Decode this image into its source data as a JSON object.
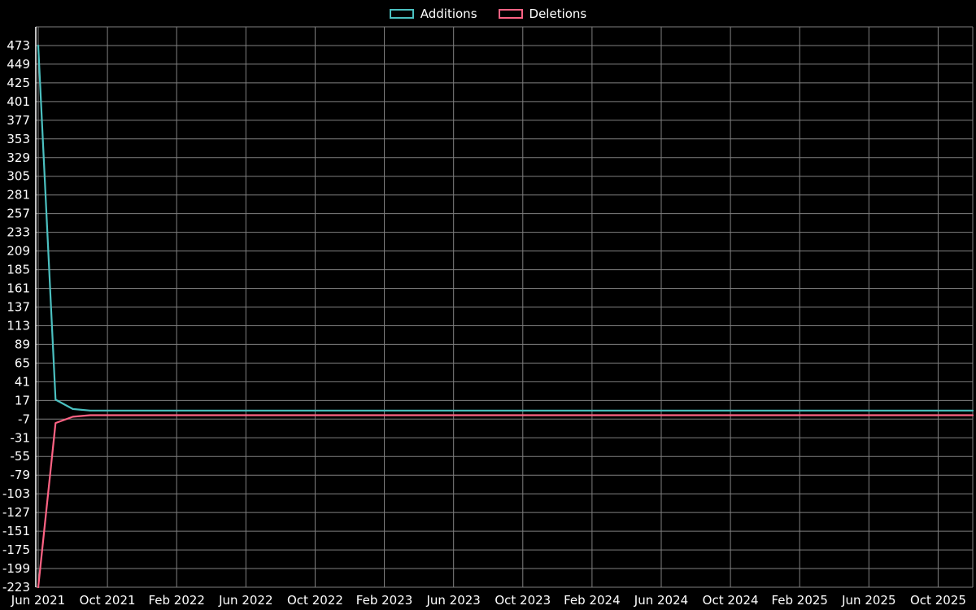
{
  "page": {
    "background": "#000000"
  },
  "legend": {
    "items": [
      {
        "label": "Additions",
        "color": "#4bc0c0"
      },
      {
        "label": "Deletions",
        "color": "#ff6384"
      }
    ]
  },
  "chart_data": {
    "type": "line",
    "title": "",
    "xlabel": "",
    "ylabel": "",
    "background": "#000000",
    "grid": true,
    "grid_color": "#808080",
    "axis_color": "#ffffff",
    "text_color": "#ffffff",
    "legend_position": "top-center",
    "x_tick_labels": [
      "Jun 2021",
      "Oct 2021",
      "Feb 2022",
      "Jun 2022",
      "Oct 2022",
      "Feb 2023",
      "Jun 2023",
      "Oct 2023",
      "Feb 2024",
      "Jun 2024",
      "Oct 2024",
      "Feb 2025",
      "Jun 2025",
      "Oct 2025"
    ],
    "x_tick_month_indices": [
      0,
      4,
      8,
      12,
      16,
      20,
      24,
      28,
      32,
      36,
      40,
      44,
      48,
      52
    ],
    "x_months_count": 55,
    "y_ticks": [
      473,
      449,
      425,
      401,
      377,
      353,
      329,
      305,
      281,
      257,
      233,
      209,
      185,
      161,
      137,
      113,
      89,
      65,
      41,
      17,
      -7,
      -31,
      -55,
      -79,
      -103,
      -127,
      -151,
      -175,
      -199,
      -223
    ],
    "ylim": [
      -223,
      497
    ],
    "series": [
      {
        "name": "Additions",
        "color": "#4bc0c0",
        "values": [
          473,
          18,
          6,
          4,
          4,
          4,
          4,
          4,
          4,
          4,
          4,
          4,
          4,
          4,
          4,
          4,
          4,
          4,
          4,
          4,
          4,
          4,
          4,
          4,
          4,
          4,
          4,
          4,
          4,
          4,
          4,
          4,
          4,
          4,
          4,
          4,
          4,
          4,
          4,
          4,
          4,
          4,
          4,
          4,
          4,
          4,
          4,
          4,
          4,
          4,
          4,
          4,
          4,
          4,
          4
        ]
      },
      {
        "name": "Deletions",
        "color": "#ff6384",
        "values": [
          -223,
          -12,
          -4,
          -2,
          -2,
          -2,
          -2,
          -2,
          -2,
          -2,
          -2,
          -2,
          -2,
          -2,
          -2,
          -2,
          -2,
          -2,
          -2,
          -2,
          -2,
          -2,
          -2,
          -2,
          -2,
          -2,
          -2,
          -2,
          -2,
          -2,
          -2,
          -2,
          -2,
          -2,
          -2,
          -2,
          -2,
          -2,
          -2,
          -2,
          -2,
          -2,
          -2,
          -2,
          -2,
          -2,
          -2,
          -2,
          -2,
          -2,
          -2,
          -2,
          -2,
          -2,
          -2
        ]
      }
    ]
  }
}
